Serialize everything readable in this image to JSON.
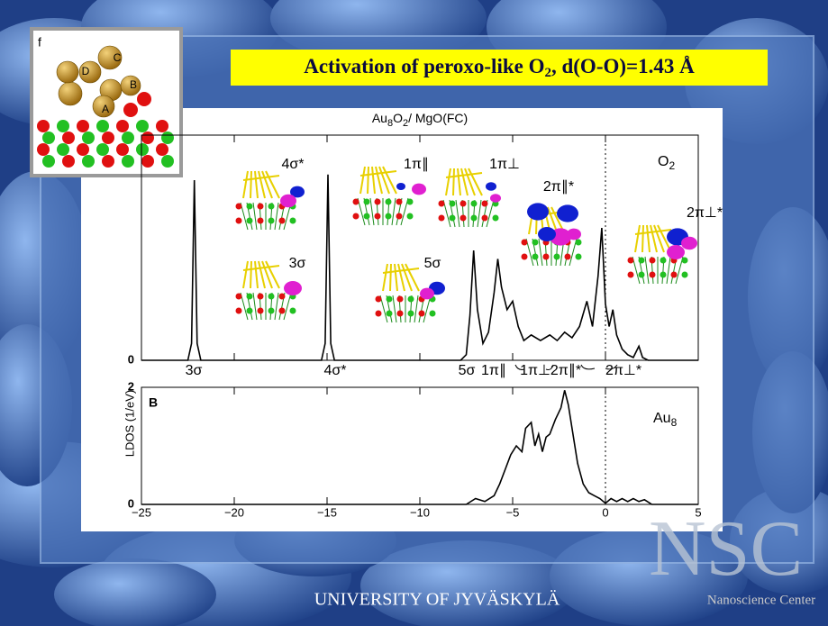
{
  "slide": {
    "title_parts": [
      "Activation of peroxo-like O",
      "2",
      ", d(O-O)=1.43 Å"
    ],
    "footer": "UNIVERSITY OF JYVÄSKYLÄ",
    "logo": "NSC",
    "logo_caption": "Nanoscience Center",
    "inset": {
      "label": "f",
      "atoms": [
        "A",
        "B",
        "C",
        "D"
      ]
    }
  },
  "chart_data": [
    {
      "type": "line",
      "title_parts": [
        "Au",
        "8",
        "O",
        "2",
        "/ MgO(FC)"
      ],
      "ylabel": "LDOS (1/eV)",
      "species_parts": [
        "O",
        "2"
      ],
      "peak_labels": [
        "3σ",
        "4σ*",
        "5σ",
        "1π∥",
        "1π⊥",
        "2π∥*",
        "2π⊥*"
      ],
      "orbital_labels": [
        "4σ*",
        "3σ",
        "1π∥",
        "5σ",
        "1π⊥",
        "2π∥*",
        "2π⊥*"
      ],
      "xlim": [
        -25,
        5
      ],
      "ylim": [
        0,
        4
      ],
      "yticks": [
        0
      ],
      "vline": 0,
      "series": [
        {
          "color": "#000000",
          "x": [
            -25,
            -22.5,
            -22.3,
            -22.15,
            -22.0,
            -21.8,
            -15.3,
            -15.1,
            -14.95,
            -14.8,
            -14.6,
            -7.8,
            -7.5,
            -7.3,
            -7.1,
            -6.9,
            -6.6,
            -6.3,
            -6.0,
            -5.8,
            -5.6,
            -5.3,
            -5.0,
            -4.7,
            -4.4,
            -4.0,
            -3.5,
            -3.0,
            -2.6,
            -2.2,
            -1.8,
            -1.4,
            -1.0,
            -0.7,
            -0.4,
            -0.2,
            0.0,
            0.2,
            0.4,
            0.6,
            0.9,
            1.2,
            1.5,
            1.8,
            2.0,
            2.3,
            5
          ],
          "values": [
            0,
            0,
            0.3,
            3.2,
            0.3,
            0,
            0,
            0.3,
            3.3,
            0.3,
            0,
            0,
            0.1,
            0.8,
            1.95,
            0.9,
            0.3,
            0.5,
            1.2,
            1.8,
            1.3,
            0.9,
            1.05,
            0.6,
            0.35,
            0.45,
            0.35,
            0.45,
            0.35,
            0.5,
            0.4,
            0.6,
            1.05,
            0.6,
            1.5,
            2.35,
            1.0,
            0.6,
            0.9,
            0.45,
            0.2,
            0.1,
            0.05,
            0.25,
            0.05,
            0,
            0
          ]
        }
      ]
    },
    {
      "type": "line",
      "panel_label": "B",
      "species_parts": [
        "Au",
        "8"
      ],
      "xlim": [
        -25,
        5
      ],
      "xticks": [
        {
          "value": -25,
          "label": "−25"
        },
        {
          "value": -20,
          "label": "−20"
        },
        {
          "value": -15,
          "label": "−15"
        },
        {
          "value": -10,
          "label": "−10"
        },
        {
          "value": -5,
          "label": "−5"
        },
        0,
        5
      ],
      "ylim": [
        0,
        2
      ],
      "yticks": [
        0,
        2
      ],
      "vline": 0,
      "series": [
        {
          "color": "#000000",
          "x": [
            -25,
            -7.5,
            -7.0,
            -6.5,
            -6.0,
            -5.7,
            -5.4,
            -5.1,
            -4.8,
            -4.5,
            -4.3,
            -4.0,
            -3.8,
            -3.6,
            -3.4,
            -3.2,
            -3.0,
            -2.7,
            -2.4,
            -2.2,
            -2.0,
            -1.8,
            -1.5,
            -1.2,
            -0.9,
            -0.6,
            -0.3,
            0.0,
            0.3,
            0.6,
            0.9,
            1.2,
            1.5,
            1.8,
            2.1,
            2.5,
            5
          ],
          "values": [
            0,
            0,
            0.1,
            0.05,
            0.15,
            0.35,
            0.6,
            0.85,
            1.0,
            0.9,
            1.3,
            1.4,
            1.0,
            1.2,
            0.9,
            1.15,
            1.2,
            1.45,
            1.65,
            1.95,
            1.7,
            1.3,
            0.7,
            0.35,
            0.2,
            0.15,
            0.1,
            0.02,
            0.1,
            0.05,
            0.1,
            0.05,
            0.1,
            0.05,
            0.08,
            0,
            0
          ]
        }
      ]
    }
  ]
}
